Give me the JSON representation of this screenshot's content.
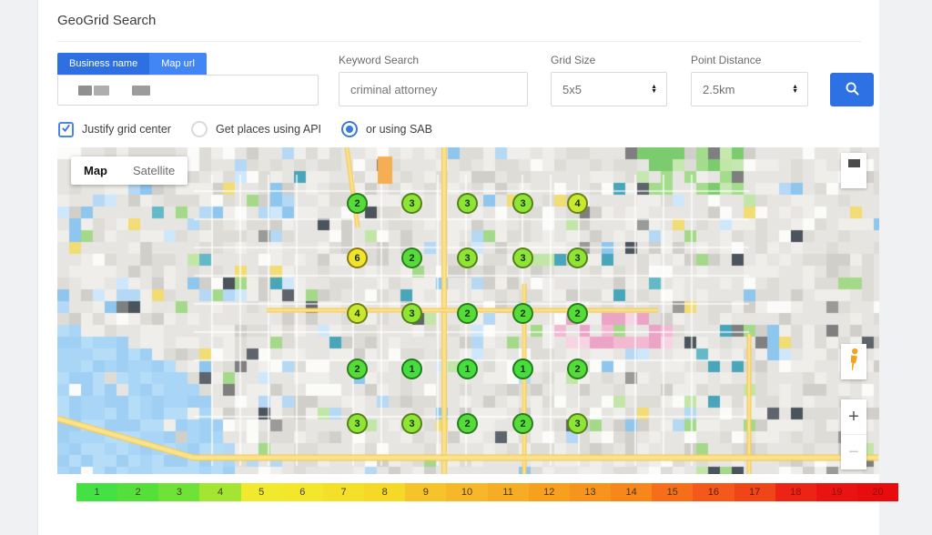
{
  "page": {
    "title": "GeoGrid Search"
  },
  "tabs": {
    "business": {
      "label": "Business name",
      "active": true
    },
    "map_url": {
      "label": "Map url",
      "active": false
    }
  },
  "form": {
    "business_name": {
      "redacted": true
    },
    "keyword": {
      "label": "Keyword Search",
      "value": "criminal attorney"
    },
    "grid_size": {
      "label": "Grid Size",
      "value": "5x5"
    },
    "point_distance": {
      "label": "Point Distance",
      "value": "2.5km"
    },
    "search_button": {
      "icon": "search-icon",
      "color": "#2E71E5"
    }
  },
  "options": {
    "justify_grid_center": {
      "label": "Justify grid center",
      "checked": true
    },
    "get_places_api": {
      "label": "Get places using API",
      "selected": false
    },
    "using_sab": {
      "label": "or using SAB",
      "selected": true
    }
  },
  "map": {
    "type_control": {
      "map": "Map",
      "satellite": "Satellite"
    },
    "zoom_in": "+",
    "zoom_out": "−",
    "grid_values": [
      [
        2,
        3,
        3,
        3,
        4
      ],
      [
        6,
        2,
        3,
        3,
        3
      ],
      [
        4,
        3,
        2,
        2,
        2
      ],
      [
        2,
        1,
        1,
        1,
        2
      ],
      [
        3,
        3,
        2,
        2,
        3
      ]
    ],
    "rank_fill": {
      "1": "#46DE3C",
      "2": "#55DC38",
      "3": "#8FE534",
      "4": "#C9E92F",
      "6": "#F2E42B"
    },
    "rank_border": {
      "1": "#1E7A1E",
      "2": "#2A7D1C",
      "3": "#55801A",
      "4": "#6F8016",
      "6": "#867C12"
    }
  },
  "scale": {
    "labels": [
      1,
      2,
      3,
      4,
      5,
      6,
      7,
      8,
      9,
      10,
      11,
      12,
      13,
      14,
      15,
      16,
      17,
      18,
      19,
      20
    ],
    "colors": [
      "#44E144",
      "#54DF3B",
      "#6EE237",
      "#A4E532",
      "#F0E92D",
      "#F4E62B",
      "#F5E029",
      "#F6D927",
      "#F6C42A",
      "#F6B72A",
      "#F7AC25",
      "#F7A01E",
      "#F7941D",
      "#F7861B",
      "#F66E19",
      "#F4591B",
      "#EF4517",
      "#EC2415",
      "#E91411",
      "#E70D0D"
    ]
  }
}
